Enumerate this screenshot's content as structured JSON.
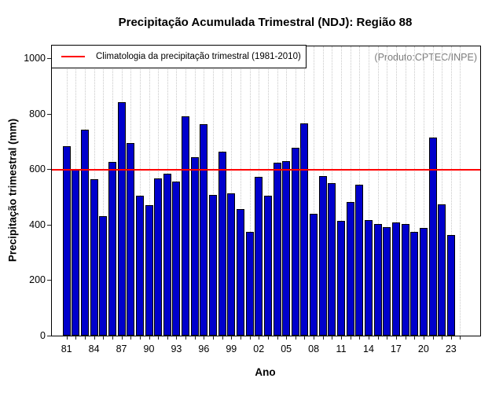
{
  "chart_data": {
    "type": "bar",
    "title": "Precipitação Acumulada Trimestral (NDJ): Região 88",
    "xlabel": "Ano",
    "ylabel": "Precipitação trimestral (mm)",
    "annotation": "(Produto:CPTEC/INPE)",
    "legend": {
      "label": "Climatologia da precipitação trimestral (1981-2010)",
      "position": "topleft",
      "line_color": "#ff0000"
    },
    "grid": "vertical dotted per year",
    "ylim": [
      0,
      1000
    ],
    "yticks": [
      "0",
      "200",
      "400",
      "600",
      "800",
      "1000"
    ],
    "xtick_labels": [
      "81",
      "84",
      "87",
      "90",
      "93",
      "96",
      "99",
      "02",
      "05",
      "08",
      "11",
      "14",
      "17",
      "20",
      "23"
    ],
    "xtick_label_step": 3,
    "climatology_value": 597,
    "x": [
      1981,
      1982,
      1983,
      1984,
      1985,
      1986,
      1987,
      1988,
      1989,
      1990,
      1991,
      1992,
      1993,
      1994,
      1995,
      1996,
      1997,
      1998,
      1999,
      2000,
      2001,
      2002,
      2003,
      2004,
      2005,
      2006,
      2007,
      2008,
      2009,
      2010,
      2011,
      2012,
      2013,
      2014,
      2015,
      2016,
      2017,
      2018,
      2019,
      2020,
      2021,
      2022,
      2023
    ],
    "values": [
      683,
      600,
      741,
      563,
      432,
      626,
      840,
      694,
      505,
      470,
      567,
      584,
      555,
      789,
      643,
      763,
      506,
      663,
      513,
      456,
      374,
      571,
      503,
      623,
      629,
      678,
      765,
      440,
      574,
      549,
      415,
      483,
      543,
      416,
      401,
      390,
      407,
      402,
      374,
      387,
      714,
      472,
      364
    ],
    "colors": {
      "bar_fill": "#0000cc",
      "bar_border": "#000000",
      "climatology_line": "#ff0000",
      "grid": "#c8c8c8",
      "annotation_text": "#7d7d7d"
    }
  }
}
